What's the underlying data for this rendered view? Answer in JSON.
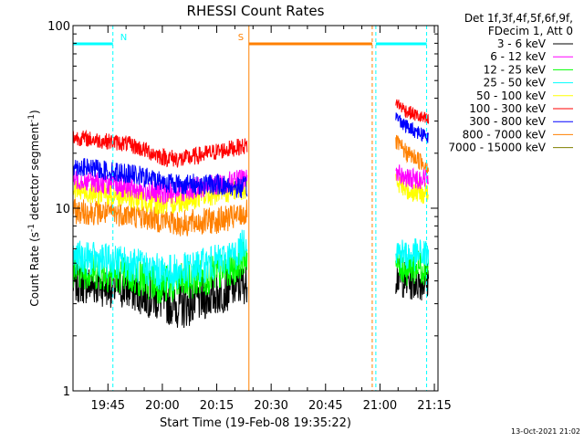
{
  "chart_data": {
    "type": "line",
    "title": "RHESSI Count Rates",
    "xlabel": "Start Time (19-Feb-08 19:35:22)",
    "ylabel_main": "Count Rate (s",
    "ylabel_sup1": "-1",
    "ylabel_mid": " detector segment",
    "ylabel_sup2": "-1",
    "ylabel_end": ")",
    "y_scale": "log",
    "ylim": [
      1,
      100
    ],
    "xlim": [
      "19:35:22",
      "21:16:00"
    ],
    "x_ticks": [
      "19:45",
      "20:00",
      "20:15",
      "20:30",
      "20:45",
      "21:00",
      "21:15"
    ],
    "y_ticks": [
      "1",
      "10",
      "100"
    ],
    "timestamp": "13-Oct-2021 21:02",
    "legend": {
      "placement": "top-right",
      "header_line1": "Det 1f,3f,4f,5f,6f,9f,",
      "header_line2": "FDecim 1, Att 0"
    },
    "series": [
      {
        "name": "3 - 6 keV",
        "color": "#000000",
        "values_before_gap": [
          [
            0,
            3.9
          ],
          [
            15,
            3.6
          ],
          [
            25,
            3.1
          ],
          [
            30,
            2.9
          ],
          [
            40,
            3.4
          ],
          [
            45,
            3.7
          ],
          [
            48,
            3.9
          ]
        ],
        "values_after_gap": [
          [
            89,
            4.3
          ],
          [
            92,
            4.0
          ],
          [
            98,
            4.0
          ]
        ]
      },
      {
        "name": "6 - 12 keV",
        "color": "#ff00ff",
        "values_before_gap": [
          [
            0,
            14.5
          ],
          [
            15,
            13.0
          ],
          [
            25,
            12.0
          ],
          [
            30,
            12.5
          ],
          [
            40,
            13.5
          ],
          [
            45,
            14.2
          ],
          [
            48,
            14.5
          ]
        ],
        "values_after_gap": [
          [
            89,
            16.0
          ],
          [
            92,
            14.5
          ],
          [
            98,
            14.5
          ]
        ]
      },
      {
        "name": "12 - 25 keV",
        "color": "#00ff00",
        "values_before_gap": [
          [
            0,
            4.6
          ],
          [
            15,
            4.3
          ],
          [
            25,
            3.8
          ],
          [
            30,
            3.9
          ],
          [
            40,
            4.4
          ],
          [
            45,
            4.8
          ],
          [
            48,
            5.6
          ]
        ],
        "values_after_gap": [
          [
            89,
            5.0
          ],
          [
            92,
            4.7
          ],
          [
            98,
            4.8
          ]
        ]
      },
      {
        "name": "25 - 50 keV",
        "color": "#00ffff",
        "values_before_gap": [
          [
            0,
            5.4
          ],
          [
            15,
            5.0
          ],
          [
            25,
            4.4
          ],
          [
            30,
            4.5
          ],
          [
            40,
            5.1
          ],
          [
            45,
            5.6
          ],
          [
            48,
            6.8
          ]
        ],
        "values_after_gap": [
          [
            89,
            5.9
          ],
          [
            92,
            5.5
          ],
          [
            98,
            5.6
          ]
        ]
      },
      {
        "name": "50 - 100 keV",
        "color": "#ffff00",
        "values_before_gap": [
          [
            0,
            12.5
          ],
          [
            15,
            11.5
          ],
          [
            25,
            10.5
          ],
          [
            30,
            11.0
          ],
          [
            40,
            12.0
          ],
          [
            45,
            12.5
          ],
          [
            48,
            13.0
          ]
        ],
        "values_after_gap": [
          [
            89,
            14.0
          ],
          [
            92,
            12.5
          ],
          [
            98,
            12.0
          ]
        ]
      },
      {
        "name": "100 - 300 keV",
        "color": "#ff0000",
        "values_before_gap": [
          [
            0,
            24.5
          ],
          [
            15,
            22.5
          ],
          [
            25,
            19.0
          ],
          [
            30,
            18.5
          ],
          [
            40,
            20.5
          ],
          [
            45,
            21.5
          ],
          [
            48,
            22.0
          ]
        ],
        "values_after_gap": [
          [
            89,
            38.0
          ],
          [
            92,
            34.0
          ],
          [
            98,
            30.0
          ]
        ]
      },
      {
        "name": "300 - 800 keV",
        "color": "#0000ff",
        "values_before_gap": [
          [
            0,
            17.0
          ],
          [
            15,
            15.5
          ],
          [
            25,
            14.0
          ],
          [
            30,
            13.5
          ],
          [
            40,
            13.5
          ],
          [
            45,
            13.0
          ],
          [
            48,
            13.0
          ]
        ],
        "values_after_gap": [
          [
            89,
            32.0
          ],
          [
            92,
            28.0
          ],
          [
            98,
            24.5
          ]
        ]
      },
      {
        "name": "800 - 7000 keV",
        "color": "#ff8000",
        "values_before_gap": [
          [
            0,
            9.6
          ],
          [
            15,
            9.3
          ],
          [
            25,
            8.6
          ],
          [
            30,
            8.2
          ],
          [
            40,
            8.6
          ],
          [
            45,
            8.9
          ],
          [
            48,
            9.5
          ]
        ],
        "values_after_gap": [
          [
            89,
            23.0
          ],
          [
            92,
            20.0
          ],
          [
            98,
            17.0
          ]
        ]
      },
      {
        "name": "7000 - 15000 keV",
        "color": "#808000",
        "values_before_gap": [],
        "values_after_gap": []
      }
    ],
    "annotations": [
      {
        "label": "N",
        "color": "#00ffff",
        "kind": "night",
        "intervals_min": [
          [
            0,
            11
          ],
          [
            83.5,
            97.5
          ]
        ],
        "markers_min": [
          11,
          83.5,
          97.5
        ]
      },
      {
        "label": "S",
        "color": "#ff8000",
        "kind": "saa",
        "intervals_min": [
          [
            48.5,
            82.5
          ]
        ],
        "markers_min": [
          48.5,
          82.5
        ]
      }
    ]
  }
}
